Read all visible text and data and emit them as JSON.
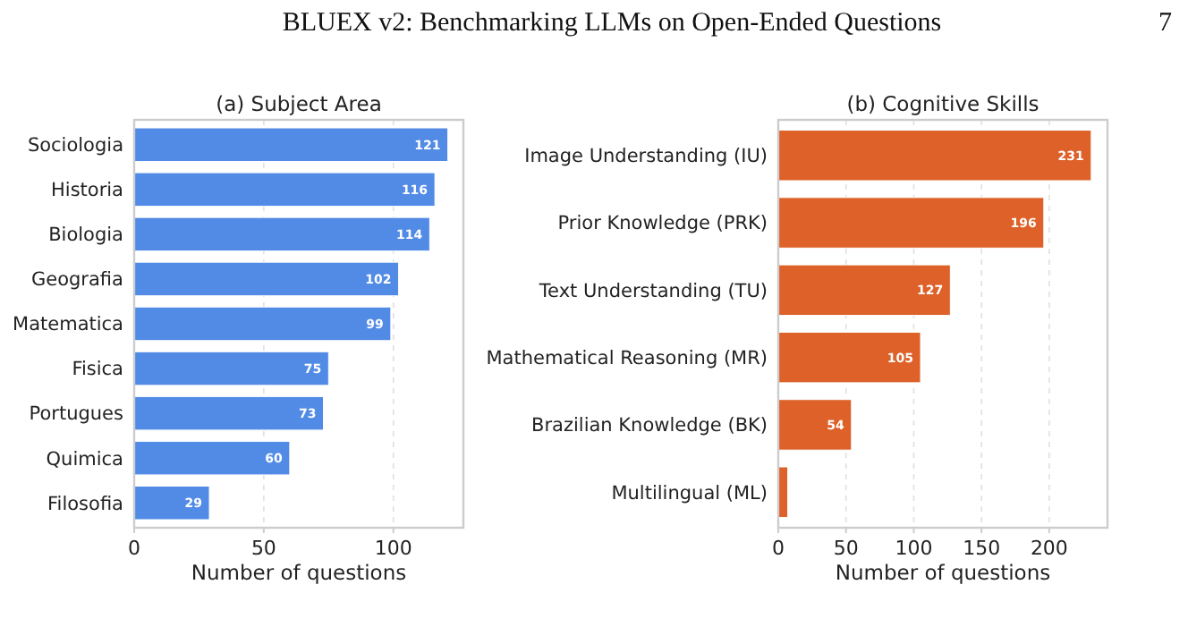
{
  "chart_data": [
    {
      "type": "bar",
      "orientation": "horizontal",
      "title": "(a) Subject Area",
      "xlabel": "Number of questions",
      "categories": [
        "Sociologia",
        "Historia",
        "Biologia",
        "Geografia",
        "Matematica",
        "Fisica",
        "Portugues",
        "Quimica",
        "Filosofia"
      ],
      "values": [
        121,
        116,
        114,
        102,
        99,
        75,
        73,
        60,
        29
      ],
      "color": "#528be6",
      "xlim": [
        0,
        127
      ],
      "xticks": [
        0,
        50,
        100
      ],
      "grid": "x",
      "data_labels": true,
      "annotations": [
        "BLUEX v2: Benchmarking LLMs on Open-Ended Questions",
        "7"
      ]
    },
    {
      "type": "bar",
      "orientation": "horizontal",
      "title": "(b) Cognitive Skills",
      "xlabel": "Number of questions",
      "categories": [
        "Image Understanding (IU)",
        "Prior Knowledge (PRK)",
        "Text Understanding (TU)",
        "Mathematical Reasoning (MR)",
        "Brazilian Knowledge (BK)",
        "Multilingual (ML)"
      ],
      "values": [
        231,
        196,
        127,
        105,
        54,
        7
      ],
      "color": "#dd6129",
      "value_labels": [
        "231",
        "196",
        "127",
        "105",
        "54",
        null
      ],
      "xlim": [
        0,
        243
      ],
      "xticks": [
        0,
        50,
        100,
        150,
        200
      ],
      "grid": "x"
    }
  ]
}
